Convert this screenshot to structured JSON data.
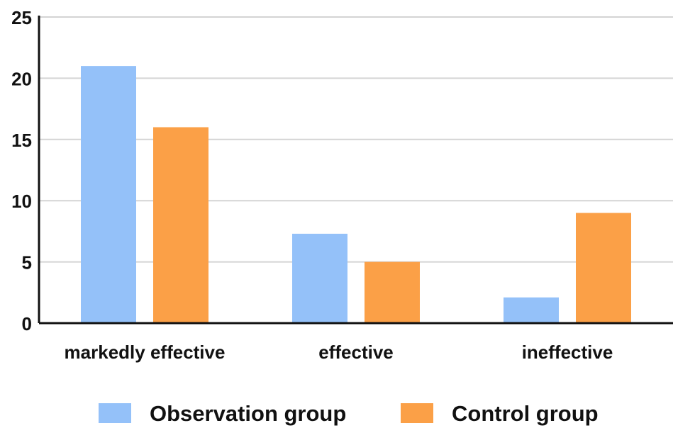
{
  "chart_data": {
    "type": "bar",
    "categories": [
      "markedly effective",
      "effective",
      "ineffective"
    ],
    "series": [
      {
        "name": "Observation group",
        "color": "#94c1f9",
        "values": [
          21,
          7.3,
          2.1
        ]
      },
      {
        "name": "Control group",
        "color": "#fba047",
        "values": [
          16,
          5,
          9
        ]
      }
    ],
    "ylim": [
      0,
      25
    ],
    "yticks": [
      0,
      5,
      10,
      15,
      20,
      25
    ],
    "grid": true,
    "legend_position": "bottom-center"
  }
}
